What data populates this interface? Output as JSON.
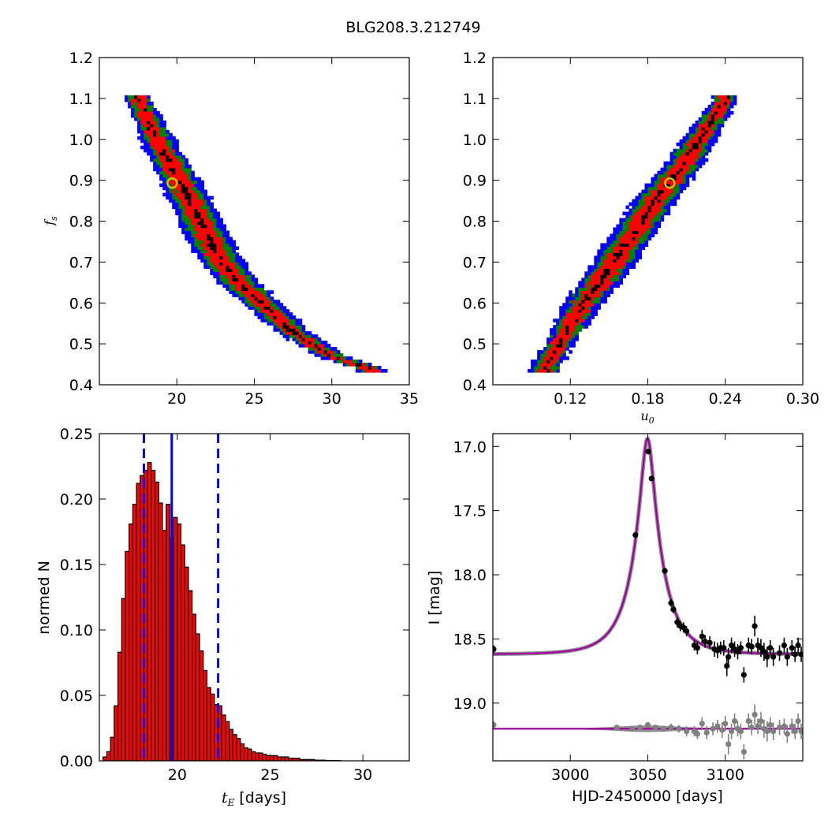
{
  "figure": {
    "title": "BLG208.3.212749"
  },
  "chart_data": [
    {
      "type": "heatmap",
      "panel": "top-left",
      "xlabel": "",
      "ylabel": "f_s",
      "xlim": [
        15,
        35
      ],
      "ylim": [
        0.4,
        1.2
      ],
      "xticks": [
        "20",
        "25",
        "30",
        "35"
      ],
      "yticks": [
        "0.4",
        "0.5",
        "0.6",
        "0.7",
        "0.8",
        "0.9",
        "1.0",
        "1.1",
        "1.2"
      ],
      "levels": [
        {
          "level": "outer",
          "color": "#0000ff"
        },
        {
          "level": "middle",
          "color": "#007f00"
        },
        {
          "level": "inner",
          "color": "#ff0000"
        },
        {
          "level": "core",
          "color": "#000000"
        }
      ],
      "ridge": [
        [
          17.5,
          1.1
        ],
        [
          19.0,
          0.98
        ],
        [
          20.2,
          0.9
        ],
        [
          21.5,
          0.8
        ],
        [
          22.6,
          0.72
        ],
        [
          24.0,
          0.65
        ],
        [
          25.5,
          0.6
        ],
        [
          27.5,
          0.53
        ],
        [
          30.0,
          0.47
        ],
        [
          32.5,
          0.44
        ]
      ],
      "best_fit": {
        "x": 19.7,
        "y": 0.893,
        "color": "#c8c800"
      }
    },
    {
      "type": "heatmap",
      "panel": "top-right",
      "xlabel": "u_0",
      "ylabel": "",
      "xlim": [
        0.06,
        0.3
      ],
      "ylim": [
        0.4,
        1.2
      ],
      "xticks": [
        "0.12",
        "0.18",
        "0.24",
        "0.30"
      ],
      "yticks": [
        "0.4",
        "0.5",
        "0.6",
        "0.7",
        "0.8",
        "0.9",
        "1.0",
        "1.1",
        "1.2"
      ],
      "levels": [
        {
          "level": "outer",
          "color": "#0000ff"
        },
        {
          "level": "middle",
          "color": "#007f00"
        },
        {
          "level": "inner",
          "color": "#ff0000"
        },
        {
          "level": "core",
          "color": "#000000"
        }
      ],
      "ridge": [
        [
          0.1,
          0.44
        ],
        [
          0.115,
          0.52
        ],
        [
          0.13,
          0.6
        ],
        [
          0.145,
          0.66
        ],
        [
          0.16,
          0.73
        ],
        [
          0.175,
          0.8
        ],
        [
          0.19,
          0.87
        ],
        [
          0.205,
          0.93
        ],
        [
          0.22,
          1.0
        ],
        [
          0.24,
          1.1
        ]
      ],
      "best_fit": {
        "x": 0.197,
        "y": 0.893,
        "color": "#c8c800"
      }
    },
    {
      "type": "bar",
      "panel": "bottom-left",
      "xlabel": "t_E [days]",
      "ylabel": "normed N",
      "xlim": [
        15.8,
        32.5
      ],
      "ylim": [
        0,
        0.25
      ],
      "xticks": [
        "20",
        "25",
        "30"
      ],
      "yticks": [
        "0.00",
        "0.05",
        "0.10",
        "0.15",
        "0.20",
        "0.25"
      ],
      "bin_start": 16.0,
      "bin_width": 0.2,
      "values": [
        0.003,
        0.007,
        0.018,
        0.042,
        0.083,
        0.124,
        0.16,
        0.181,
        0.196,
        0.212,
        0.218,
        0.222,
        0.228,
        0.222,
        0.213,
        0.197,
        0.176,
        0.196,
        0.17,
        0.186,
        0.181,
        0.165,
        0.148,
        0.13,
        0.112,
        0.097,
        0.084,
        0.069,
        0.056,
        0.051,
        0.043,
        0.042,
        0.035,
        0.03,
        0.024,
        0.02,
        0.017,
        0.013,
        0.01,
        0.009,
        0.007,
        0.006,
        0.006,
        0.005,
        0.004,
        0.004,
        0.004,
        0.003,
        0.003,
        0.003,
        0.002,
        0.002,
        0.002,
        0.001,
        0.001,
        0.001,
        0.001,
        0.0005,
        0.0005,
        0.0005,
        0.0003,
        0.0003,
        0.0002,
        0.0002
      ],
      "bar_color": "#ff0000",
      "vlines": [
        {
          "x": 18.2,
          "style": "dashed"
        },
        {
          "x": 19.7,
          "style": "solid"
        },
        {
          "x": 22.2,
          "style": "dashed"
        }
      ],
      "vline_color": "#0000ff"
    },
    {
      "type": "scatter",
      "panel": "bottom-right",
      "xlabel": "HJD-2450000 [days]",
      "ylabel": "I [mag]",
      "xlim": [
        2950,
        3150
      ],
      "ylim": [
        19.45,
        16.9
      ],
      "xticks": [
        "3000",
        "3050",
        "3100"
      ],
      "yticks": [
        "17.0",
        "17.5",
        "18.0",
        "18.5",
        "19.0"
      ],
      "model": {
        "t0": 3049.8,
        "tE": 19.7,
        "u0": 0.197,
        "fs": 0.893,
        "baseline": 18.62,
        "color": "#a000a0"
      },
      "residual_baseline": 19.2,
      "series": [
        {
          "name": "",
          "color": "#000000",
          "points": [
            [
              2950.5,
              18.58,
              0.03
            ],
            [
              3042,
              17.69,
              0.02
            ],
            [
              3050.3,
              17.04,
              0.02
            ],
            [
              3052.4,
              17.25,
              0.02
            ],
            [
              3061,
              17.97,
              0.02
            ],
            [
              3065,
              18.22,
              0.03
            ],
            [
              3066.5,
              18.27,
              0.03
            ],
            [
              3069,
              18.37,
              0.04
            ],
            [
              3071,
              18.4,
              0.04
            ],
            [
              3073,
              18.41,
              0.04
            ],
            [
              3075,
              18.44,
              0.04
            ],
            [
              3080,
              18.55,
              0.04
            ],
            [
              3082,
              18.57,
              0.05
            ],
            [
              3085,
              18.48,
              0.05
            ],
            [
              3087,
              18.52,
              0.05
            ],
            [
              3090,
              18.53,
              0.05
            ],
            [
              3093,
              18.58,
              0.06
            ],
            [
              3095,
              18.59,
              0.06
            ],
            [
              3097,
              18.57,
              0.05
            ],
            [
              3099,
              18.57,
              0.06
            ],
            [
              3101,
              18.71,
              0.08
            ],
            [
              3102,
              18.64,
              0.07
            ],
            [
              3104,
              18.55,
              0.06
            ],
            [
              3106,
              18.58,
              0.06
            ],
            [
              3108,
              18.6,
              0.06
            ],
            [
              3110,
              18.57,
              0.05
            ],
            [
              3112,
              18.78,
              0.06
            ],
            [
              3115,
              18.55,
              0.06
            ],
            [
              3117,
              18.56,
              0.06
            ],
            [
              3119,
              18.4,
              0.08
            ],
            [
              3121,
              18.55,
              0.06
            ],
            [
              3123,
              18.57,
              0.07
            ],
            [
              3125,
              18.6,
              0.07
            ],
            [
              3127,
              18.64,
              0.08
            ],
            [
              3129,
              18.57,
              0.06
            ],
            [
              3131,
              18.64,
              0.07
            ],
            [
              3135,
              18.61,
              0.06
            ],
            [
              3138,
              18.55,
              0.06
            ],
            [
              3140,
              18.64,
              0.07
            ],
            [
              3143,
              18.57,
              0.06
            ],
            [
              3145,
              18.62,
              0.06
            ],
            [
              3147,
              18.55,
              0.06
            ],
            [
              3149,
              18.62,
              0.06
            ]
          ]
        },
        {
          "name": "",
          "color": "#808080",
          "points": [
            [
              2950.5,
              19.17,
              0.03
            ],
            [
              3030,
              19.19,
              0.02
            ],
            [
              3040,
              19.2,
              0.02
            ],
            [
              3045,
              19.19,
              0.02
            ],
            [
              3050,
              19.17,
              0.02
            ],
            [
              3055,
              19.19,
              0.02
            ],
            [
              3060,
              19.2,
              0.02
            ],
            [
              3065,
              19.19,
              0.03
            ],
            [
              3070,
              19.2,
              0.03
            ],
            [
              3075,
              19.22,
              0.04
            ],
            [
              3080,
              19.22,
              0.04
            ],
            [
              3082,
              19.24,
              0.04
            ],
            [
              3085,
              19.16,
              0.05
            ],
            [
              3088,
              19.23,
              0.05
            ],
            [
              3092,
              19.2,
              0.05
            ],
            [
              3095,
              19.18,
              0.05
            ],
            [
              3098,
              19.21,
              0.06
            ],
            [
              3100,
              19.16,
              0.06
            ],
            [
              3102,
              19.32,
              0.08
            ],
            [
              3104,
              19.22,
              0.06
            ],
            [
              3106,
              19.14,
              0.06
            ],
            [
              3108,
              19.2,
              0.06
            ],
            [
              3110,
              19.22,
              0.06
            ],
            [
              3112,
              19.38,
              0.06
            ],
            [
              3115,
              19.14,
              0.06
            ],
            [
              3117,
              19.19,
              0.06
            ],
            [
              3119,
              19.09,
              0.08
            ],
            [
              3121,
              19.18,
              0.06
            ],
            [
              3123,
              19.14,
              0.07
            ],
            [
              3125,
              19.2,
              0.07
            ],
            [
              3127,
              19.22,
              0.08
            ],
            [
              3129,
              19.17,
              0.06
            ],
            [
              3131,
              19.22,
              0.07
            ],
            [
              3135,
              19.19,
              0.06
            ],
            [
              3138,
              19.18,
              0.06
            ],
            [
              3140,
              19.24,
              0.07
            ],
            [
              3143,
              19.18,
              0.06
            ],
            [
              3145,
              19.22,
              0.06
            ],
            [
              3147,
              19.14,
              0.06
            ],
            [
              3149,
              19.22,
              0.06
            ]
          ]
        }
      ]
    }
  ]
}
